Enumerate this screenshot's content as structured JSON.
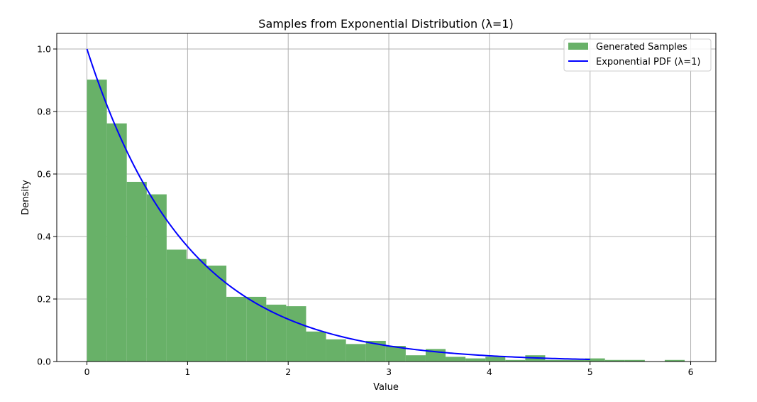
{
  "chart_data": {
    "type": "bar",
    "title": "Samples from Exponential Distribution (λ=1)",
    "xlabel": "Value",
    "ylabel": "Density",
    "xlim": [
      -0.3,
      6.25
    ],
    "ylim": [
      0,
      1.05
    ],
    "xticks": [
      0,
      1,
      2,
      3,
      4,
      5,
      6
    ],
    "yticks": [
      0.0,
      0.2,
      0.4,
      0.6,
      0.8,
      1.0
    ],
    "grid": true,
    "legend_position": "top-right",
    "histogram": {
      "name": "Generated Samples",
      "color": "#68b168",
      "bin_edges": [
        0.0,
        0.198,
        0.396,
        0.594,
        0.792,
        0.99,
        1.188,
        1.386,
        1.584,
        1.782,
        1.98,
        2.178,
        2.376,
        2.574,
        2.772,
        2.97,
        3.168,
        3.366,
        3.564,
        3.762,
        3.96,
        4.158,
        4.356,
        4.554,
        4.752,
        4.95,
        5.148,
        5.346,
        5.544,
        5.742,
        5.94
      ],
      "density": [
        0.902,
        0.762,
        0.575,
        0.535,
        0.358,
        0.328,
        0.307,
        0.207,
        0.207,
        0.182,
        0.177,
        0.096,
        0.071,
        0.056,
        0.066,
        0.05,
        0.02,
        0.04,
        0.015,
        0.01,
        0.015,
        0.005,
        0.02,
        0.005,
        0.005,
        0.01,
        0.005,
        0.005,
        0.0,
        0.005
      ]
    },
    "line": {
      "name": "Exponential PDF (λ=1)",
      "color": "#0000ff",
      "function": "exp(-x)",
      "x_range": [
        0,
        5
      ]
    }
  }
}
